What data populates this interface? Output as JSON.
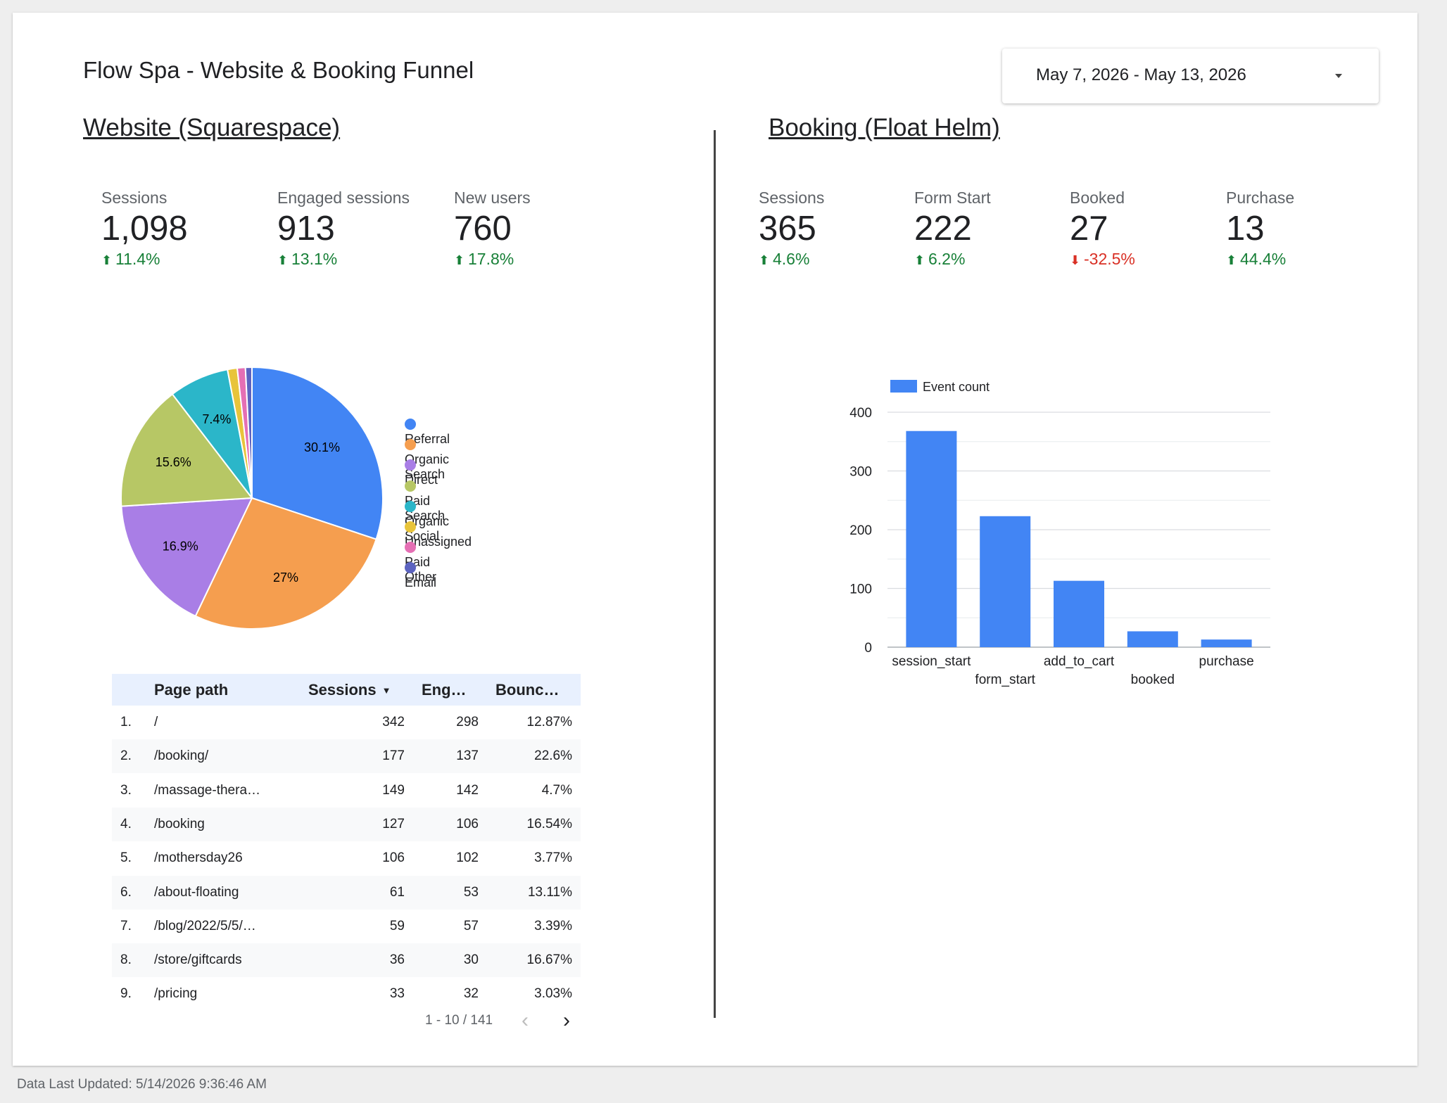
{
  "dashboard": {
    "title": "Flow Spa - Website & Booking Funnel",
    "date_range": "May 7, 2026 - May 13, 2026",
    "footer": "Data Last Updated: 5/14/2026 9:36:46 AM"
  },
  "website": {
    "title": "Website (Squarespace)",
    "kpis": [
      {
        "label": "Sessions",
        "value": "1,098",
        "delta": "11.4%",
        "direction": "up"
      },
      {
        "label": "Engaged sessions",
        "value": "913",
        "delta": "13.1%",
        "direction": "up"
      },
      {
        "label": "New users",
        "value": "760",
        "delta": "17.8%",
        "direction": "up"
      }
    ]
  },
  "booking": {
    "title": "Booking (Float Helm)",
    "kpis": [
      {
        "label": "Sessions",
        "value": "365",
        "delta": "4.6%",
        "direction": "up"
      },
      {
        "label": "Form Start",
        "value": "222",
        "delta": "6.2%",
        "direction": "up"
      },
      {
        "label": "Booked",
        "value": "27",
        "delta": "-32.5%",
        "direction": "down"
      },
      {
        "label": "Purchase",
        "value": "13",
        "delta": "44.4%",
        "direction": "up"
      }
    ]
  },
  "colors": {
    "up": "#188038",
    "down": "#d93025",
    "bar": "#4285f4"
  },
  "chart_data": [
    {
      "type": "pie",
      "slices": [
        {
          "name": "Referral",
          "value": 30.1,
          "label": "30.1%",
          "color": "#4285f4"
        },
        {
          "name": "Organic Search",
          "value": 27.0,
          "label": "27%",
          "color": "#f59e4f"
        },
        {
          "name": "Direct",
          "value": 16.9,
          "label": "16.9%",
          "color": "#a97ee6"
        },
        {
          "name": "Paid Search",
          "value": 15.6,
          "label": "15.6%",
          "color": "#b7c765"
        },
        {
          "name": "Organic Social",
          "value": 7.4,
          "label": "7.4%",
          "color": "#2bb6c9"
        },
        {
          "name": "Unassigned",
          "value": 1.2,
          "label": "",
          "color": "#e8c43a"
        },
        {
          "name": "Paid Other",
          "value": 1.0,
          "label": "",
          "color": "#e56fb4"
        },
        {
          "name": "Email",
          "value": 0.8,
          "label": "",
          "color": "#5c63c0"
        }
      ],
      "legend_position": "right"
    },
    {
      "type": "bar",
      "categories": [
        "session_start",
        "form_start",
        "add_to_cart",
        "booked",
        "purchase"
      ],
      "series": [
        {
          "name": "Event count",
          "values": [
            368,
            223,
            113,
            27,
            13
          ]
        }
      ],
      "ylim": [
        0,
        400
      ],
      "yticks": [
        "0",
        "100",
        "200",
        "300",
        "400"
      ],
      "grid": true,
      "legend_position": "top-left"
    }
  ],
  "table": {
    "headers": {
      "page_path": "Page path",
      "sessions": "Sessions",
      "engaged": "Eng…",
      "bounce": "Bounc…"
    },
    "rows": [
      {
        "idx": "1.",
        "path": "/",
        "sessions": "342",
        "engaged": "298",
        "bounce": "12.87%"
      },
      {
        "idx": "2.",
        "path": "/booking/",
        "sessions": "177",
        "engaged": "137",
        "bounce": "22.6%"
      },
      {
        "idx": "3.",
        "path": "/massage-thera…",
        "sessions": "149",
        "engaged": "142",
        "bounce": "4.7%"
      },
      {
        "idx": "4.",
        "path": "/booking",
        "sessions": "127",
        "engaged": "106",
        "bounce": "16.54%"
      },
      {
        "idx": "5.",
        "path": "/mothersday26",
        "sessions": "106",
        "engaged": "102",
        "bounce": "3.77%"
      },
      {
        "idx": "6.",
        "path": "/about-floating",
        "sessions": "61",
        "engaged": "53",
        "bounce": "13.11%"
      },
      {
        "idx": "7.",
        "path": "/blog/2022/5/5/…",
        "sessions": "59",
        "engaged": "57",
        "bounce": "3.39%"
      },
      {
        "idx": "8.",
        "path": "/store/giftcards",
        "sessions": "36",
        "engaged": "30",
        "bounce": "16.67%"
      },
      {
        "idx": "9.",
        "path": "/pricing",
        "sessions": "33",
        "engaged": "32",
        "bounce": "3.03%"
      }
    ],
    "pagination": "1 - 10 / 141"
  }
}
